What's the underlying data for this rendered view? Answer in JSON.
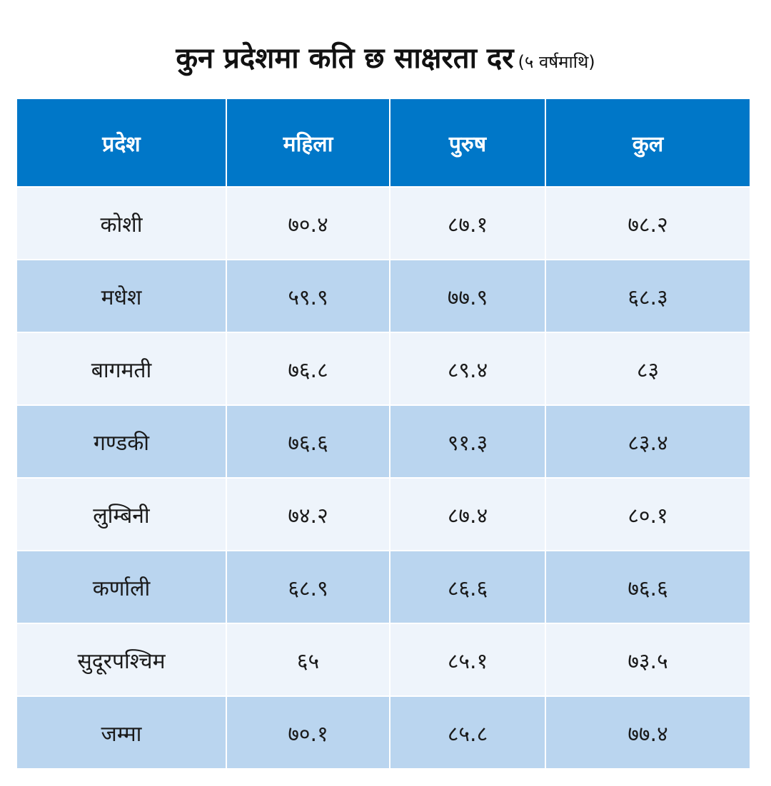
{
  "title": {
    "main": "कुन प्रदेशमा कति छ साक्षरता दर",
    "sub": "(५ वर्षमाथि)"
  },
  "colors": {
    "header_bg": "#0077c8",
    "row_light": "#eef4fb",
    "row_dark": "#bad5ef"
  },
  "chart_data": {
    "type": "table",
    "title": "कुन प्रदेशमा कति छ साक्षरता दर (५ वर्षमाथि)",
    "columns": [
      "प्रदेश",
      "महिला",
      "पुरुष",
      "कुल"
    ],
    "rows": [
      [
        "कोशी",
        "७०.४",
        "८७.१",
        "७८.२"
      ],
      [
        "मधेश",
        "५९.९",
        "७७.९",
        "६८.३"
      ],
      [
        "बागमती",
        "७६.८",
        "८९.४",
        "८३"
      ],
      [
        "गण्डकी",
        "७६.६",
        "९१.३",
        "८३.४"
      ],
      [
        "लुम्बिनी",
        "७४.२",
        "८७.४",
        "८०.१"
      ],
      [
        "कर्णाली",
        "६८.९",
        "८६.६",
        "७६.६"
      ],
      [
        "सुदूरपश्चिम",
        "६५",
        "८५.१",
        "७३.५"
      ],
      [
        "जम्मा",
        "७०.१",
        "८५.८",
        "७७.४"
      ]
    ]
  }
}
